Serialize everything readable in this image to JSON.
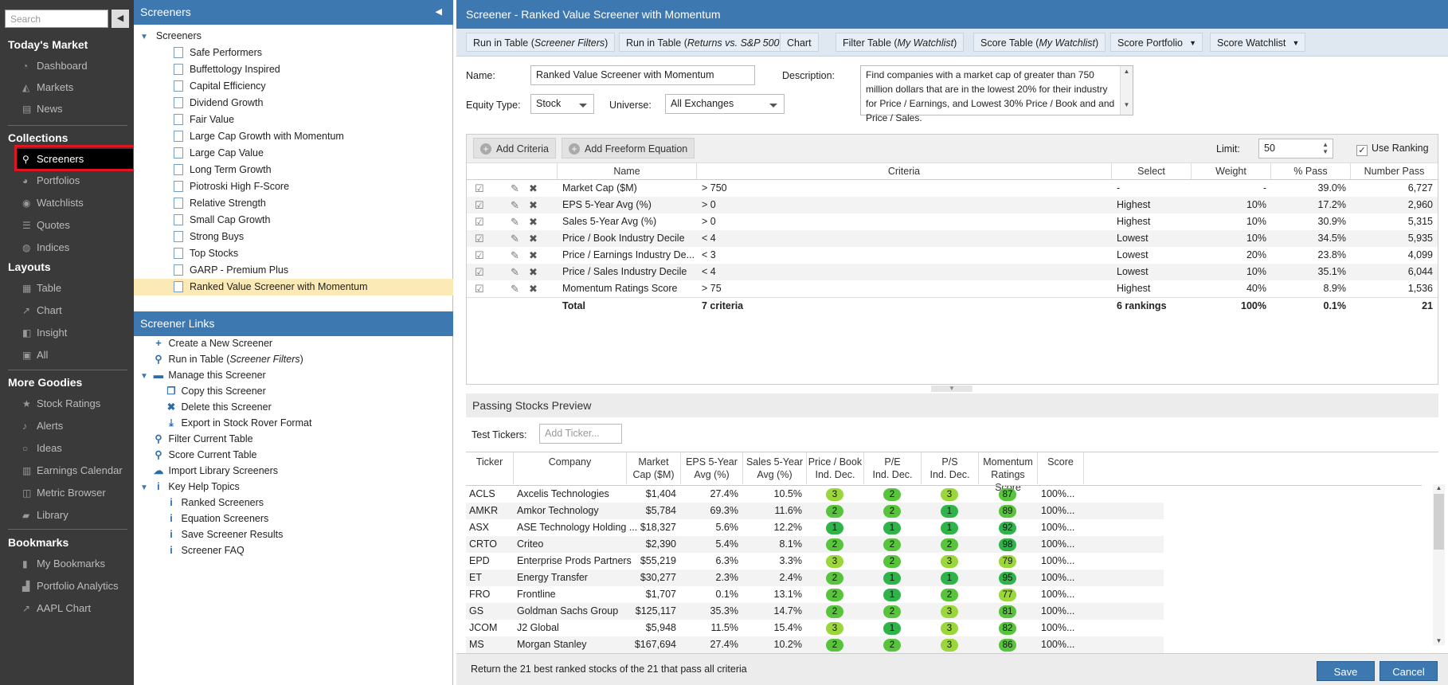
{
  "nav": {
    "search_placeholder": "Search",
    "collapse_icon": "◀",
    "sections": [
      {
        "title": "Today's Market",
        "items": [
          {
            "label": "Dashboard",
            "icon": "dashboard-icon"
          },
          {
            "label": "Markets",
            "icon": "markets-icon"
          },
          {
            "label": "News",
            "icon": "news-icon"
          }
        ]
      },
      {
        "title": "Collections",
        "items": [
          {
            "label": "Screeners",
            "icon": "search-icon"
          },
          {
            "label": "Portfolios",
            "icon": "pie-icon"
          },
          {
            "label": "Watchlists",
            "icon": "eye-icon"
          },
          {
            "label": "Quotes",
            "icon": "list-icon"
          },
          {
            "label": "Indices",
            "icon": "globe-icon"
          }
        ]
      },
      {
        "title": "Layouts",
        "items": [
          {
            "label": "Table",
            "icon": "table-icon"
          },
          {
            "label": "Chart",
            "icon": "chart-icon"
          },
          {
            "label": "Insight",
            "icon": "insight-icon"
          },
          {
            "label": "All",
            "icon": "all-icon"
          }
        ]
      },
      {
        "title": "More Goodies",
        "items": [
          {
            "label": "Stock Ratings",
            "icon": "star-icon"
          },
          {
            "label": "Alerts",
            "icon": "bell-icon"
          },
          {
            "label": "Ideas",
            "icon": "bulb-icon"
          },
          {
            "label": "Earnings Calendar",
            "icon": "calendar-icon"
          },
          {
            "label": "Metric Browser",
            "icon": "browser-icon"
          },
          {
            "label": "Library",
            "icon": "library-icon"
          }
        ]
      },
      {
        "title": "Bookmarks",
        "items": [
          {
            "label": "My Bookmarks",
            "icon": "bookmark-icon"
          },
          {
            "label": "Portfolio Analytics",
            "icon": "analytics-icon"
          },
          {
            "label": "AAPL Chart",
            "icon": "chart-icon"
          }
        ]
      }
    ]
  },
  "screeners_panel": {
    "title": "Screeners",
    "root": "Screeners",
    "items": [
      "Safe Performers",
      "Buffettology Inspired",
      "Capital Efficiency",
      "Dividend Growth",
      "Fair Value",
      "Large Cap Growth with Momentum",
      "Large Cap Value",
      "Long Term Growth",
      "Piotroski High F-Score",
      "Relative Strength",
      "Small Cap Growth",
      "Strong Buys",
      "Top Stocks",
      "GARP - Premium Plus",
      "Ranked Value Screener with Momentum"
    ]
  },
  "links_panel": {
    "title": "Screener Links",
    "create": "Create a New Screener",
    "run_prefix": "Run in Table (",
    "run_italic": "Screener Filters",
    "run_suffix": ")",
    "manage": "Manage this Screener",
    "copy": "Copy this Screener",
    "delete": "Delete this Screener",
    "export": "Export in Stock Rover Format",
    "filter": "Filter Current Table",
    "score": "Score Current Table",
    "import": "Import Library Screeners",
    "help": "Key Help Topics",
    "help_items": [
      "Ranked Screeners",
      "Equation Screeners",
      "Save Screener Results",
      "Screener FAQ"
    ]
  },
  "editor": {
    "title": "Screener - Ranked Value Screener with Momentum",
    "toolbar": {
      "run_filters": [
        "Run in Table (",
        "Screener Filters",
        ")"
      ],
      "run_returns": [
        "Run in Table (",
        "Returns vs. S&P 500",
        ")"
      ],
      "chart": "Chart",
      "filter_table": [
        "Filter Table (",
        "My Watchlist",
        ")"
      ],
      "score_table": [
        "Score Table (",
        "My Watchlist",
        ")"
      ],
      "score_portfolio": "Score Portfolio",
      "score_watchlist": "Score Watchlist"
    },
    "name_label": "Name:",
    "name_value": "Ranked Value Screener with Momentum",
    "description_label": "Description:",
    "description": "Find companies with a market cap of greater than 750 million dollars that are in the lowest 20% for their industry for Price / Earnings, and Lowest 30% Price / Book and and Price / Sales.",
    "equity_label": "Equity Type:",
    "equity_value": "Stock",
    "universe_label": "Universe:",
    "universe_value": "All Exchanges",
    "add_criteria": "Add Criteria",
    "add_equation": "Add Freeform Equation",
    "limit_label": "Limit:",
    "limit_value": "50",
    "use_ranking": "Use Ranking",
    "columns": [
      "Name",
      "Criteria",
      "Select",
      "Weight",
      "% Pass",
      "Number Pass"
    ],
    "criteria": [
      {
        "name": "Market Cap ($M)",
        "criteria": "> 750",
        "select": "-",
        "weight": "-",
        "pass": "39.0%",
        "number": "6,727"
      },
      {
        "name": "EPS 5-Year Avg (%)",
        "criteria": "> 0",
        "select": "Highest",
        "weight": "10%",
        "pass": "17.2%",
        "number": "2,960"
      },
      {
        "name": "Sales 5-Year Avg (%)",
        "criteria": "> 0",
        "select": "Highest",
        "weight": "10%",
        "pass": "30.9%",
        "number": "5,315"
      },
      {
        "name": "Price / Book Industry Decile",
        "criteria": "< 4",
        "select": "Lowest",
        "weight": "10%",
        "pass": "34.5%",
        "number": "5,935"
      },
      {
        "name": "Price / Earnings Industry De...",
        "criteria": "< 3",
        "select": "Lowest",
        "weight": "20%",
        "pass": "23.8%",
        "number": "4,099"
      },
      {
        "name": "Price / Sales Industry Decile",
        "criteria": "< 4",
        "select": "Lowest",
        "weight": "10%",
        "pass": "35.1%",
        "number": "6,044"
      },
      {
        "name": "Momentum Ratings Score",
        "criteria": "> 75",
        "select": "Highest",
        "weight": "40%",
        "pass": "8.9%",
        "number": "1,536"
      }
    ],
    "total": {
      "name": "Total",
      "criteria": "7 criteria",
      "select": "6 rankings",
      "weight": "100%",
      "pass": "0.1%",
      "number": "21"
    }
  },
  "preview": {
    "title": "Passing Stocks Preview",
    "test_label": "Test Tickers:",
    "test_placeholder": "Add Ticker...",
    "columns": [
      [
        "Ticker"
      ],
      [
        "Company"
      ],
      [
        "Market",
        "Cap ($M)"
      ],
      [
        "EPS 5-Year",
        "Avg (%)"
      ],
      [
        "Sales 5-Year",
        "Avg (%)"
      ],
      [
        "Price / Book",
        "Ind. Dec."
      ],
      [
        "P/E",
        "Ind. Dec."
      ],
      [
        "P/S",
        "Ind. Dec."
      ],
      [
        "Momentum",
        "Ratings Score"
      ],
      [
        "Score"
      ]
    ],
    "rows": [
      {
        "ticker": "ACLS",
        "company": "Axcelis Technologies",
        "cap": "$1,404",
        "eps": "27.4%",
        "sales": "10.5%",
        "pb": "3",
        "pe": "2",
        "ps": "3",
        "mom": "87",
        "score": "100%..."
      },
      {
        "ticker": "AMKR",
        "company": "Amkor Technology",
        "cap": "$5,784",
        "eps": "69.3%",
        "sales": "11.6%",
        "pb": "2",
        "pe": "2",
        "ps": "1",
        "mom": "89",
        "score": "100%..."
      },
      {
        "ticker": "ASX",
        "company": "ASE Technology Holding ...",
        "cap": "$18,327",
        "eps": "5.6%",
        "sales": "12.2%",
        "pb": "1",
        "pe": "1",
        "ps": "1",
        "mom": "92",
        "score": "100%..."
      },
      {
        "ticker": "CRTO",
        "company": "Criteo",
        "cap": "$2,390",
        "eps": "5.4%",
        "sales": "8.1%",
        "pb": "2",
        "pe": "2",
        "ps": "2",
        "mom": "98",
        "score": "100%..."
      },
      {
        "ticker": "EPD",
        "company": "Enterprise Prods Partners",
        "cap": "$55,219",
        "eps": "6.3%",
        "sales": "3.3%",
        "pb": "3",
        "pe": "2",
        "ps": "3",
        "mom": "79",
        "score": "100%..."
      },
      {
        "ticker": "ET",
        "company": "Energy Transfer",
        "cap": "$30,277",
        "eps": "2.3%",
        "sales": "2.4%",
        "pb": "2",
        "pe": "1",
        "ps": "1",
        "mom": "95",
        "score": "100%..."
      },
      {
        "ticker": "FRO",
        "company": "Frontline",
        "cap": "$1,707",
        "eps": "0.1%",
        "sales": "13.1%",
        "pb": "2",
        "pe": "1",
        "ps": "2",
        "mom": "77",
        "score": "100%..."
      },
      {
        "ticker": "GS",
        "company": "Goldman Sachs Group",
        "cap": "$125,117",
        "eps": "35.3%",
        "sales": "14.7%",
        "pb": "2",
        "pe": "2",
        "ps": "3",
        "mom": "81",
        "score": "100%..."
      },
      {
        "ticker": "JCOM",
        "company": "J2 Global",
        "cap": "$5,948",
        "eps": "11.5%",
        "sales": "15.4%",
        "pb": "3",
        "pe": "1",
        "ps": "3",
        "mom": "82",
        "score": "100%..."
      },
      {
        "ticker": "MS",
        "company": "Morgan Stanley",
        "cap": "$167,694",
        "eps": "27.4%",
        "sales": "10.2%",
        "pb": "2",
        "pe": "2",
        "ps": "3",
        "mom": "86",
        "score": "100%..."
      }
    ]
  },
  "footer": {
    "status": "Return the 21 best ranked stocks of the 21 that pass all criteria",
    "save": "Save",
    "cancel": "Cancel"
  },
  "colors": {
    "header_blue": "#3d78b0",
    "highlight_red": "#e0151f",
    "pill_dark_green": "#2fb44a",
    "pill_green": "#57c43c",
    "pill_lime": "#9bd63a"
  }
}
